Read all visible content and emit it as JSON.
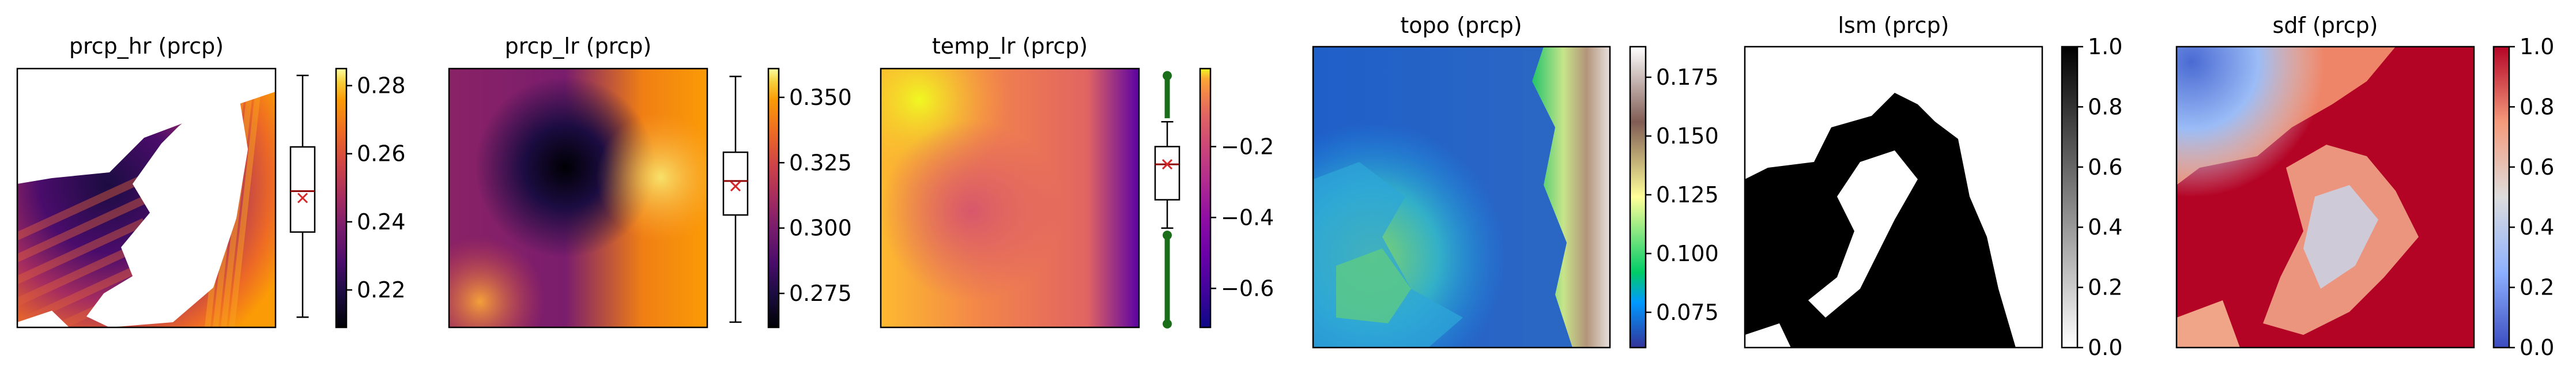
{
  "chart_data": [
    {
      "type": "heatmap",
      "title": "prcp_hr (prcp)",
      "colormap": "inferno",
      "colorbar": {
        "ticks": [
          "0.22",
          "0.24",
          "0.26",
          "0.28"
        ],
        "range": [
          0.209,
          0.285
        ]
      },
      "boxplot": {
        "whisker_low": 0.212,
        "q1": 0.237,
        "median": 0.249,
        "mean": 0.247,
        "q3": 0.262,
        "whisker_high": 0.283,
        "outliers": []
      },
      "masked": true
    },
    {
      "type": "heatmap",
      "title": "prcp_lr (prcp)",
      "colormap": "inferno",
      "colorbar": {
        "ticks": [
          "0.275",
          "0.300",
          "0.325",
          "0.350"
        ],
        "range": [
          0.262,
          0.361
        ]
      },
      "boxplot": {
        "whisker_low": 0.264,
        "q1": 0.305,
        "median": 0.318,
        "mean": 0.316,
        "q3": 0.329,
        "whisker_high": 0.358,
        "outliers": []
      },
      "masked": false
    },
    {
      "type": "heatmap",
      "title": "temp_lr (prcp)",
      "colormap": "plasma",
      "colorbar": {
        "ticks": [
          "−0.6",
          "−0.4",
          "−0.2"
        ],
        "range": [
          -0.71,
          0.02
        ]
      },
      "boxplot": {
        "whisker_low": -0.43,
        "q1": -0.35,
        "median": -0.25,
        "mean": -0.25,
        "q3": -0.2,
        "whisker_high": -0.13,
        "outliers_low_range": [
          -0.7,
          -0.45
        ],
        "outliers_high_range": [
          -0.12,
          0.0
        ]
      },
      "masked": false
    },
    {
      "type": "heatmap",
      "title": "topo (prcp)",
      "colormap": "terrain",
      "colorbar": {
        "ticks": [
          "0.075",
          "0.100",
          "0.125",
          "0.150",
          "0.175"
        ],
        "range": [
          0.06,
          0.188
        ]
      },
      "masked": false
    },
    {
      "type": "heatmap",
      "title": "lsm (prcp)",
      "colormap": "gray",
      "colorbar": {
        "ticks": [
          "0.0",
          "0.2",
          "0.4",
          "0.6",
          "0.8",
          "1.0"
        ],
        "range": [
          0.0,
          1.0
        ]
      },
      "masked": false
    },
    {
      "type": "heatmap",
      "title": "sdf (prcp)",
      "colormap": "coolwarm",
      "colorbar": {
        "ticks": [
          "0.0",
          "0.2",
          "0.4",
          "0.6",
          "0.8",
          "1.0"
        ],
        "range": [
          0.0,
          1.0
        ]
      },
      "masked": false
    }
  ]
}
